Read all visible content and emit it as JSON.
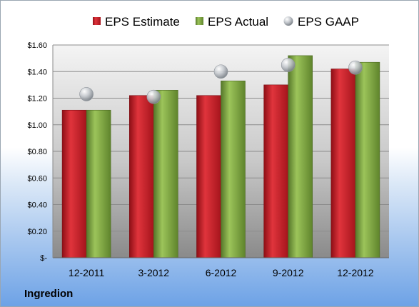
{
  "company": "Ingredion",
  "colors": {
    "estimate": "#c8202a",
    "actual": "#7aa23a",
    "gaap": "#b8bcc2"
  },
  "chart_data": {
    "type": "bar",
    "categories": [
      "12-2011",
      "3-2012",
      "6-2012",
      "9-2012",
      "12-2012"
    ],
    "series": [
      {
        "name": "EPS Estimate",
        "values": [
          1.11,
          1.22,
          1.22,
          1.3,
          1.42
        ]
      },
      {
        "name": "EPS Actual",
        "values": [
          1.11,
          1.26,
          1.33,
          1.52,
          1.47
        ]
      },
      {
        "name": "EPS GAAP",
        "type": "scatter",
        "values": [
          1.23,
          1.21,
          1.4,
          1.45,
          1.43
        ]
      }
    ],
    "yticks": [
      "$-",
      "$0.20",
      "$0.40",
      "$0.60",
      "$0.80",
      "$1.00",
      "$1.20",
      "$1.40",
      "$1.60"
    ],
    "ylim": [
      0,
      1.6
    ],
    "grid": true,
    "legend_position": "top"
  }
}
